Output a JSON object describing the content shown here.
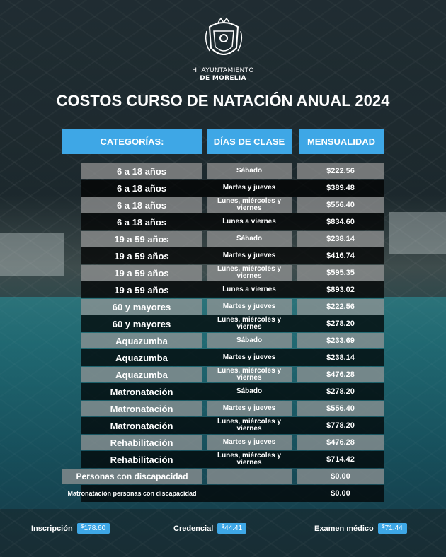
{
  "org": {
    "line1": "H. AYUNTAMIENTO",
    "line2": "DE MORELIA"
  },
  "title": "COSTOS CURSO DE NATACIÓN ANUAL 2024",
  "headers": {
    "category": "CATEGORÍAS:",
    "days": "DÍAS DE CLASE",
    "monthly": "MENSUALIDAD"
  },
  "rows": [
    {
      "category": "6 a 18 años",
      "days": "Sábado",
      "price": "$222.56"
    },
    {
      "category": "6 a 18 años",
      "days": "Martes y jueves",
      "price": "$389.48"
    },
    {
      "category": "6 a 18 años",
      "days": "Lunes, miércoles y viernes",
      "price": "$556.40"
    },
    {
      "category": "6 a 18 años",
      "days": "Lunes a viernes",
      "price": "$834.60"
    },
    {
      "category": "19 a 59 años",
      "days": "Sábado",
      "price": "$238.14"
    },
    {
      "category": "19 a 59 años",
      "days": "Martes y jueves",
      "price": "$416.74"
    },
    {
      "category": "19 a 59 años",
      "days": "Lunes, miércoles y viernes",
      "price": "$595.35"
    },
    {
      "category": "19 a 59 años",
      "days": "Lunes a viernes",
      "price": "$893.02"
    },
    {
      "category": "60 y  mayores",
      "days": "Martes y jueves",
      "price": "$222.56"
    },
    {
      "category": "60 y  mayores",
      "days": "Lunes, miércoles y viernes",
      "price": "$278.20"
    },
    {
      "category": "Aquazumba",
      "days": "Sábado",
      "price": "$233.69"
    },
    {
      "category": "Aquazumba",
      "days": "Martes y jueves",
      "price": "$238.14"
    },
    {
      "category": "Aquazumba",
      "days": "Lunes, miércoles y viernes",
      "price": "$476.28"
    },
    {
      "category": "Matronatación",
      "days": "Sábado",
      "price": "$278.20"
    },
    {
      "category": "Matronatación",
      "days": "Martes y jueves",
      "price": "$556.40"
    },
    {
      "category": "Matronatación",
      "days": "Lunes, miércoles y viernes",
      "price": "$778.20"
    },
    {
      "category": "Rehabilitación",
      "days": "Martes y jueves",
      "price": "$476.28"
    },
    {
      "category": "Rehabilitación",
      "days": "Lunes, miércoles y viernes",
      "price": "$714.42"
    },
    {
      "category": "Personas con discapacidad",
      "days": "",
      "price": "$0.00"
    },
    {
      "category": "Matronatación personas con discapacidad",
      "days": "",
      "price": "$0.00"
    }
  ],
  "footer": [
    {
      "label": "Inscripción",
      "currency": "$",
      "value": "178.60"
    },
    {
      "label": "Credencial",
      "currency": "$",
      "value": "44.41"
    },
    {
      "label": "Examen médico",
      "currency": "$",
      "value": "71.44"
    }
  ],
  "colors": {
    "accent": "#3ea7e6",
    "light_row": "#969696",
    "dark_row": "#000000"
  },
  "icons": {
    "logo": "coat-of-arms-icon"
  }
}
